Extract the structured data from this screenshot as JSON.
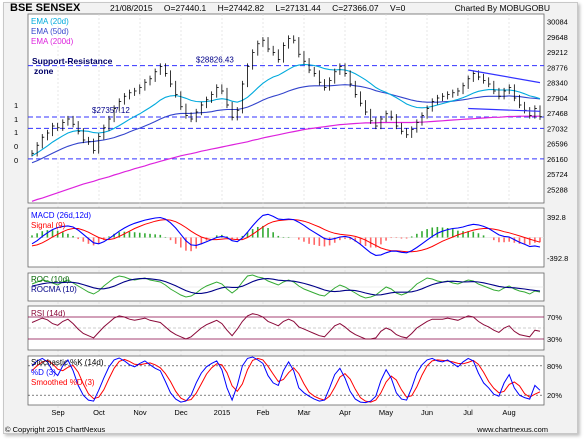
{
  "header": {
    "title": "BSE SENSEX",
    "date": "21/08/2015",
    "open": "O=27440.1",
    "high": "H=27442.82",
    "low": "L=27131.44",
    "close": "C=27366.07",
    "volume": "V=0",
    "credit": "Charted By MOBUGOBU"
  },
  "footer": {
    "copyright": "© Copyright 2015 ChartNexus",
    "site": "www.chartnexus.com"
  },
  "colors": {
    "ema20": "#00aadd",
    "ema50": "#3344cc",
    "ema200": "#dd22dd",
    "candle": "#000000",
    "support": "#3333ff",
    "macd": "#0000ff",
    "signal": "#ff0000",
    "hist_up": "#33aa33",
    "hist_down": "#ff6666",
    "roc": "#33aa33",
    "rocma": "#000088",
    "rsi": "#8b0a3a",
    "stoch_k": "#0000ff",
    "stoch_d": "#ff0000",
    "panel_bg": "#ffffff",
    "grid": "#dddddd",
    "ref_line": "#880044"
  },
  "annotations": {
    "support_resistance": "Support-Resistance",
    "zone": "zone",
    "level_high": "$28826.43",
    "level_mid": "$27357.12"
  },
  "chart_data": {
    "type": "line",
    "title": "BSE SENSEX",
    "x_labels": [
      "Sep",
      "Oct",
      "Nov",
      "Dec",
      "2015",
      "Feb",
      "Mar",
      "Apr",
      "May",
      "Jun",
      "Jul",
      "Aug"
    ],
    "price_axis": {
      "ticks": [
        "30084",
        "29648",
        "29212",
        "28776",
        "28340",
        "27904",
        "27468",
        "27032",
        "26596",
        "26160",
        "25724",
        "25288"
      ],
      "ylim": [
        24900,
        30300
      ]
    },
    "left_axis_fragments": [
      "1",
      "1",
      "1",
      "0",
      "0"
    ],
    "horizontal_levels": [
      28826.43,
      27357.12,
      26160,
      27032
    ],
    "price": [
      26320,
      26550,
      26780,
      26900,
      27100,
      27050,
      27200,
      27300,
      27150,
      26950,
      26700,
      26650,
      26400,
      26800,
      27050,
      27300,
      27600,
      27800,
      27950,
      28050,
      28100,
      28200,
      28350,
      28450,
      28650,
      28800,
      28600,
      28300,
      28000,
      27650,
      27400,
      27300,
      27500,
      27700,
      27850,
      28000,
      28200,
      28100,
      27700,
      27350,
      27550,
      28300,
      28800,
      29200,
      29450,
      29550,
      29300,
      29200,
      29000,
      29400,
      29600,
      29550,
      29150,
      28950,
      28700,
      28600,
      28350,
      28200,
      28400,
      28650,
      28800,
      28600,
      28300,
      28000,
      27750,
      27500,
      27250,
      27100,
      27300,
      27450,
      27350,
      27100,
      26950,
      26850,
      27000,
      27200,
      27400,
      27600,
      27800,
      27900,
      27950,
      28000,
      28050,
      28100,
      28250,
      28450,
      28600,
      28500,
      28400,
      28300,
      28100,
      27950,
      28100,
      28200,
      27900,
      27700,
      27550,
      27400,
      27600,
      27366
    ],
    "ema20": [
      26250,
      26330,
      26430,
      26530,
      26640,
      26730,
      26820,
      26900,
      26950,
      26970,
      26960,
      26950,
      26910,
      26900,
      26920,
      26960,
      27030,
      27110,
      27200,
      27290,
      27370,
      27450,
      27540,
      27630,
      27730,
      27840,
      27920,
      27960,
      27970,
      27940,
      27890,
      27830,
      27800,
      27790,
      27800,
      27820,
      27860,
      27880,
      27860,
      27810,
      27780,
      27830,
      27920,
      28050,
      28190,
      28320,
      28420,
      28500,
      28550,
      28630,
      28720,
      28800,
      28840,
      28860,
      28850,
      28830,
      28790,
      28740,
      28710,
      28700,
      28710,
      28700,
      28660,
      28590,
      28510,
      28420,
      28310,
      28200,
      28120,
      28060,
      27990,
      27910,
      27820,
      27730,
      27670,
      27630,
      27620,
      27630,
      27660,
      27700,
      27740,
      27780,
      27820,
      27860,
      27910,
      27970,
      28040,
      28090,
      28120,
      28140,
      28140,
      28130,
      28130,
      28130,
      28110,
      28070,
      28020,
      27960,
      27930,
      27880
    ],
    "ema50": [
      26050,
      26110,
      26180,
      26250,
      26320,
      26390,
      26460,
      26520,
      26570,
      26610,
      26630,
      26650,
      26660,
      26680,
      26700,
      26730,
      26770,
      26820,
      26870,
      26930,
      26990,
      27040,
      27100,
      27160,
      27230,
      27300,
      27360,
      27410,
      27440,
      27460,
      27460,
      27460,
      27470,
      27480,
      27490,
      27510,
      27540,
      27560,
      27570,
      27570,
      27570,
      27600,
      27640,
      27700,
      27770,
      27840,
      27900,
      27950,
      27990,
      28040,
      28100,
      28150,
      28190,
      28220,
      28240,
      28250,
      28250,
      28250,
      28250,
      28260,
      28270,
      28280,
      28270,
      28250,
      28230,
      28200,
      28160,
      28110,
      28070,
      28040,
      28000,
      27960,
      27920,
      27880,
      27840,
      27810,
      27790,
      27780,
      27780,
      27780,
      27790,
      27800,
      27810,
      27830,
      27850,
      27870,
      27900,
      27920,
      27940,
      27950,
      27950,
      27950,
      27950,
      27960,
      27950,
      27940,
      27920,
      27900,
      27890,
      27870
    ],
    "ema200": [
      24950,
      25000,
      25040,
      25090,
      25140,
      25190,
      25240,
      25290,
      25340,
      25390,
      25440,
      25480,
      25520,
      25570,
      25610,
      25650,
      25700,
      25740,
      25790,
      25830,
      25880,
      25920,
      25960,
      26010,
      26050,
      26090,
      26130,
      26170,
      26210,
      26250,
      26280,
      26310,
      26340,
      26380,
      26410,
      26440,
      26470,
      26500,
      26530,
      26560,
      26590,
      26620,
      26650,
      26690,
      26720,
      26760,
      26790,
      26820,
      26850,
      26880,
      26910,
      26940,
      26970,
      27000,
      27020,
      27040,
      27060,
      27080,
      27100,
      27120,
      27140,
      27150,
      27160,
      27170,
      27180,
      27190,
      27190,
      27190,
      27200,
      27200,
      27200,
      27200,
      27200,
      27200,
      27200,
      27210,
      27210,
      27220,
      27230,
      27240,
      27250,
      27260,
      27270,
      27280,
      27290,
      27300,
      27310,
      27320,
      27330,
      27340,
      27350,
      27350,
      27360,
      27370,
      27370,
      27380,
      27380,
      27380,
      27380,
      27380
    ],
    "macd": {
      "ticks": [
        "392.8",
        "-392.8"
      ],
      "ylim": [
        -560,
        560
      ],
      "macd": [
        -120,
        -60,
        20,
        90,
        150,
        190,
        210,
        220,
        200,
        140,
        60,
        -20,
        -100,
        -120,
        -80,
        -20,
        50,
        120,
        180,
        230,
        270,
        300,
        330,
        350,
        370,
        380,
        350,
        280,
        180,
        60,
        -60,
        -140,
        -150,
        -120,
        -80,
        -40,
        0,
        20,
        0,
        -60,
        -80,
        -10,
        100,
        220,
        330,
        420,
        440,
        400,
        350,
        340,
        350,
        340,
        290,
        230,
        160,
        100,
        40,
        -20,
        -40,
        -20,
        10,
        20,
        0,
        -60,
        -130,
        -210,
        -290,
        -340,
        -330,
        -290,
        -260,
        -260,
        -280,
        -290,
        -250,
        -190,
        -120,
        -50,
        20,
        80,
        120,
        150,
        170,
        180,
        200,
        230,
        250,
        240,
        210,
        170,
        110,
        50,
        20,
        10,
        -40,
        -90,
        -130,
        -170,
        -160,
        -180
      ],
      "signal": [
        -160,
        -140,
        -100,
        -50,
        10,
        60,
        110,
        150,
        170,
        170,
        140,
        100,
        50,
        0,
        -30,
        -40,
        -20,
        20,
        70,
        120,
        170,
        210,
        250,
        280,
        310,
        330,
        340,
        330,
        300,
        250,
        190,
        120,
        60,
        10,
        -20,
        -40,
        -40,
        -30,
        -20,
        -30,
        -40,
        -40,
        0,
        60,
        130,
        200,
        260,
        300,
        320,
        330,
        340,
        340,
        330,
        310,
        280,
        240,
        200,
        150,
        110,
        80,
        60,
        50,
        40,
        20,
        -10,
        -50,
        -100,
        -150,
        -200,
        -230,
        -250,
        -250,
        -260,
        -270,
        -270,
        -260,
        -240,
        -210,
        -170,
        -120,
        -70,
        -30,
        10,
        50,
        80,
        110,
        140,
        160,
        170,
        170,
        160,
        140,
        110,
        90,
        60,
        30,
        0,
        -30,
        -60,
        -90
      ]
    },
    "roc": {
      "ylim": [
        -7,
        7
      ],
      "roc": [
        1.5,
        2.5,
        3.5,
        3.0,
        2.0,
        1.0,
        2.5,
        3.5,
        2.0,
        0.5,
        -1.0,
        -2.5,
        -3.5,
        -2.0,
        0.5,
        2.5,
        4.5,
        5.5,
        5.0,
        4.0,
        3.5,
        4.0,
        4.5,
        3.5,
        3.0,
        2.5,
        1.0,
        -1.0,
        -2.5,
        -4.0,
        -5.0,
        -4.5,
        -3.0,
        -1.0,
        0.5,
        1.5,
        2.5,
        1.5,
        -1.0,
        -3.0,
        -1.0,
        2.5,
        5.5,
        6.0,
        5.0,
        4.5,
        3.0,
        2.0,
        1.0,
        2.5,
        3.5,
        2.5,
        0.5,
        -1.0,
        -2.0,
        -3.0,
        -4.0,
        -4.5,
        -2.5,
        -0.5,
        1.0,
        0.0,
        -1.5,
        -3.0,
        -4.5,
        -5.5,
        -5.0,
        -4.0,
        -2.0,
        0.0,
        -1.0,
        -3.0,
        -4.0,
        -3.0,
        -1.0,
        1.5,
        3.0,
        4.5,
        4.0,
        3.0,
        2.5,
        3.0,
        2.0,
        1.5,
        2.5,
        3.5,
        3.0,
        1.5,
        0.5,
        -0.5,
        -1.5,
        -2.0,
        -0.5,
        0.5,
        -1.0,
        -2.0,
        -2.5,
        -3.5,
        -2.0,
        -2.5
      ],
      "rocma": [
        0.5,
        1.0,
        1.6,
        2.0,
        2.2,
        2.1,
        2.2,
        2.4,
        2.3,
        1.9,
        1.2,
        0.4,
        -0.4,
        -0.9,
        -0.9,
        -0.4,
        0.4,
        1.5,
        2.6,
        3.4,
        3.9,
        4.2,
        4.3,
        4.1,
        3.8,
        3.4,
        2.7,
        1.7,
        0.6,
        -0.6,
        -1.8,
        -2.7,
        -3.2,
        -3.2,
        -2.8,
        -2.1,
        -1.2,
        -0.4,
        0.0,
        -0.2,
        -0.2,
        0.4,
        1.5,
        2.7,
        3.6,
        4.1,
        4.2,
        3.9,
        3.4,
        3.2,
        3.1,
        2.9,
        2.4,
        1.8,
        1.1,
        0.3,
        -0.6,
        -1.5,
        -2.1,
        -2.3,
        -2.1,
        -1.7,
        -1.6,
        -1.8,
        -2.3,
        -3.0,
        -3.6,
        -4.0,
        -3.9,
        -3.4,
        -2.9,
        -2.6,
        -2.6,
        -2.6,
        -2.4,
        -1.8,
        -0.9,
        0.2,
        1.2,
        1.9,
        2.4,
        2.8,
        2.9,
        2.7,
        2.5,
        2.6,
        2.7,
        2.5,
        2.1,
        1.5,
        0.9,
        0.3,
        -0.1,
        -0.3,
        -0.4,
        -0.7,
        -1.0,
        -1.4,
        -1.7,
        -2.0
      ]
    },
    "rsi": {
      "ticks": [
        "70%",
        "30%"
      ],
      "levels": [
        70,
        30
      ],
      "ylim": [
        10,
        90
      ],
      "values": [
        60,
        64,
        68,
        65,
        58,
        55,
        62,
        66,
        58,
        48,
        40,
        36,
        32,
        42,
        52,
        60,
        68,
        72,
        70,
        66,
        64,
        66,
        68,
        64,
        62,
        60,
        52,
        44,
        38,
        34,
        30,
        34,
        42,
        50,
        56,
        60,
        64,
        58,
        46,
        36,
        48,
        62,
        72,
        76,
        74,
        70,
        62,
        58,
        54,
        62,
        66,
        62,
        52,
        48,
        44,
        40,
        36,
        34,
        44,
        54,
        58,
        52,
        44,
        38,
        34,
        30,
        30,
        32,
        44,
        50,
        46,
        38,
        34,
        32,
        40,
        50,
        56,
        62,
        66,
        66,
        66,
        68,
        66,
        64,
        68,
        72,
        70,
        62,
        56,
        52,
        46,
        42,
        50,
        54,
        44,
        38,
        36,
        34,
        46,
        44
      ]
    },
    "stochastic": {
      "title": "Stochastic %K (14d)",
      "k_label": "%D (3)",
      "d_label": "Smoothed %D (3)",
      "ticks": [
        "80%",
        "20%"
      ],
      "levels": [
        80,
        20
      ],
      "ylim": [
        0,
        100
      ],
      "k": [
        80,
        90,
        95,
        88,
        70,
        60,
        80,
        92,
        70,
        40,
        20,
        10,
        8,
        30,
        55,
        78,
        92,
        96,
        90,
        82,
        78,
        85,
        90,
        82,
        75,
        70,
        48,
        25,
        12,
        6,
        8,
        20,
        45,
        65,
        78,
        85,
        90,
        72,
        35,
        10,
        40,
        80,
        95,
        98,
        92,
        85,
        60,
        45,
        40,
        70,
        88,
        70,
        35,
        25,
        18,
        12,
        8,
        10,
        35,
        62,
        75,
        55,
        28,
        12,
        6,
        5,
        8,
        18,
        50,
        72,
        55,
        25,
        12,
        10,
        35,
        65,
        82,
        92,
        95,
        90,
        88,
        92,
        85,
        78,
        88,
        95,
        90,
        65,
        45,
        35,
        22,
        18,
        45,
        62,
        35,
        20,
        15,
        12,
        40,
        30
      ],
      "d": [
        70,
        80,
        88,
        91,
        84,
        73,
        70,
        77,
        81,
        67,
        43,
        23,
        13,
        16,
        31,
        54,
        75,
        89,
        93,
        89,
        83,
        82,
        84,
        86,
        82,
        76,
        64,
        48,
        28,
        14,
        9,
        11,
        24,
        43,
        63,
        76,
        84,
        82,
        66,
        39,
        28,
        43,
        72,
        91,
        95,
        92,
        79,
        63,
        48,
        52,
        66,
        76,
        64,
        43,
        26,
        18,
        13,
        10,
        18,
        36,
        57,
        64,
        53,
        32,
        15,
        8,
        6,
        10,
        25,
        47,
        59,
        51,
        31,
        16,
        19,
        37,
        61,
        80,
        90,
        92,
        91,
        90,
        88,
        85,
        84,
        87,
        91,
        83,
        67,
        48,
        34,
        25,
        28,
        42,
        47,
        39,
        23,
        16,
        22,
        27
      ]
    },
    "panel_labels": {
      "ema20": "EMA (20d)",
      "ema50": "EMA (50d)",
      "ema200": "EMA (200d)",
      "macd": "MACD (26d,12d)",
      "signal": "Signal (9)",
      "roc": "ROC (10d)",
      "rocma": "ROCMA (10)",
      "rsi": "RSI (14d)"
    }
  }
}
